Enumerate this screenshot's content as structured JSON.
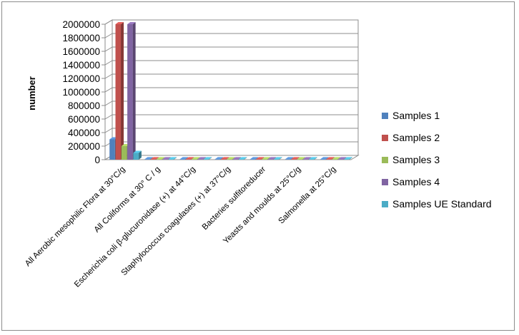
{
  "chart_data": {
    "type": "bar",
    "title": "",
    "xlabel": "",
    "ylabel": "number",
    "ylim": [
      0,
      2000000
    ],
    "yticks": [
      0,
      200000,
      400000,
      600000,
      800000,
      1000000,
      1200000,
      1400000,
      1600000,
      1800000,
      2000000
    ],
    "ytick_labels": [
      "0",
      "200000",
      "400000",
      "600000",
      "800000",
      "1000000",
      "1200000",
      "1400000",
      "1600000",
      "1800000",
      "2000000"
    ],
    "grid": true,
    "style": "3d-clustered",
    "legend_position": "right",
    "categories": [
      "All Aerobic mesophilic Flora at 30°C/g",
      "All Coliforms at 30° C / g",
      "Escherichia coli β-glucuronidase (+) at 44°C/g",
      "Staphylococcus coagulases (+) at 37°C/g",
      "Bacteries sulfitoreducer",
      "Yeasts and moulds at 25°C/g",
      "Salmonella at 25°C/g"
    ],
    "series": [
      {
        "name": "Samples 1",
        "color": "#4f81bd",
        "values": [
          300000,
          0,
          0,
          0,
          10,
          0,
          0
        ]
      },
      {
        "name": "Samples 2",
        "color": "#c0504d",
        "values": [
          2000000,
          0,
          0,
          0,
          10,
          0,
          0
        ]
      },
      {
        "name": "Samples 3",
        "color": "#9bbb59",
        "values": [
          200000,
          0,
          0,
          0,
          10,
          0,
          0
        ]
      },
      {
        "name": "Samples 4",
        "color": "#8064a2",
        "values": [
          2000000,
          0,
          0,
          0,
          10,
          0,
          0
        ]
      },
      {
        "name": "Samples UE Standard",
        "color": "#4bacc6",
        "values": [
          100000,
          0,
          0,
          0,
          0,
          0,
          0
        ]
      }
    ]
  }
}
